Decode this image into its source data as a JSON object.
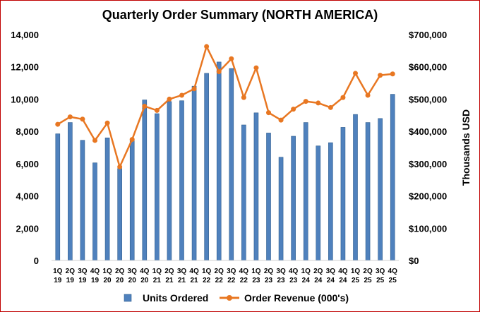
{
  "chart_data": {
    "type": "bar+line",
    "title": "Quarterly Order Summary (NORTH AMERICA)",
    "categories": [
      [
        "1Q",
        "19"
      ],
      [
        "2Q",
        "19"
      ],
      [
        "3Q",
        "19"
      ],
      [
        "4Q",
        "19"
      ],
      [
        "1Q",
        "20"
      ],
      [
        "2Q",
        "20"
      ],
      [
        "3Q",
        "20"
      ],
      [
        "4Q",
        "20"
      ],
      [
        "1Q",
        "21"
      ],
      [
        "2Q",
        "21"
      ],
      [
        "3Q",
        "21"
      ],
      [
        "4Q",
        "21"
      ],
      [
        "1Q",
        "22"
      ],
      [
        "2Q",
        "22"
      ],
      [
        "3Q",
        "22"
      ],
      [
        "4Q",
        "22"
      ],
      [
        "1Q",
        "23"
      ],
      [
        "2Q",
        "23"
      ],
      [
        "3Q",
        "23"
      ],
      [
        "4Q",
        "23"
      ],
      [
        "1Q",
        "24"
      ],
      [
        "2Q",
        "24"
      ],
      [
        "3Q",
        "24"
      ],
      [
        "4Q",
        "24"
      ],
      [
        "1Q",
        "25"
      ],
      [
        "2Q",
        "25"
      ],
      [
        "3Q",
        "25"
      ],
      [
        "4Q",
        "25"
      ]
    ],
    "series": [
      {
        "name": "Units Ordered",
        "type": "bar",
        "axis": "left",
        "color": "#4f81bd",
        "values": [
          7850,
          8550,
          7450,
          6050,
          7600,
          5700,
          7450,
          9950,
          9100,
          9850,
          9900,
          10800,
          11600,
          12300,
          11900,
          8400,
          9150,
          7900,
          6400,
          7700,
          8550,
          7100,
          7300,
          8250,
          9050,
          8550,
          8800,
          10300
        ]
      },
      {
        "name": "Order Revenue (000's)",
        "type": "line",
        "axis": "right",
        "color": "#e87722",
        "values": [
          422000,
          445000,
          438000,
          372000,
          426000,
          290000,
          375000,
          478000,
          465000,
          500000,
          512000,
          532000,
          663000,
          585000,
          625000,
          505000,
          597000,
          458000,
          435000,
          469000,
          493000,
          488000,
          474000,
          505000,
          580000,
          512000,
          574000,
          578000
        ]
      }
    ],
    "y_left": {
      "min": 0,
      "max": 14000,
      "ticks": [
        0,
        2000,
        4000,
        6000,
        8000,
        10000,
        12000,
        14000
      ],
      "tick_labels": [
        "0",
        "2,000",
        "4,000",
        "6,000",
        "8,000",
        "10,000",
        "12,000",
        "14,000"
      ],
      "label": ""
    },
    "y_right": {
      "min": 0,
      "max": 700000,
      "ticks": [
        0,
        100000,
        200000,
        300000,
        400000,
        500000,
        600000,
        700000
      ],
      "tick_labels": [
        "$0",
        "$100,000",
        "$200,000",
        "$300,000",
        "$400,000",
        "$500,000",
        "$600,000",
        "$700,000"
      ],
      "label": "Thousands USD"
    },
    "grid": false,
    "legend": {
      "position": "bottom",
      "entries": [
        "Units Ordered",
        "Order Revenue (000's)"
      ]
    }
  }
}
